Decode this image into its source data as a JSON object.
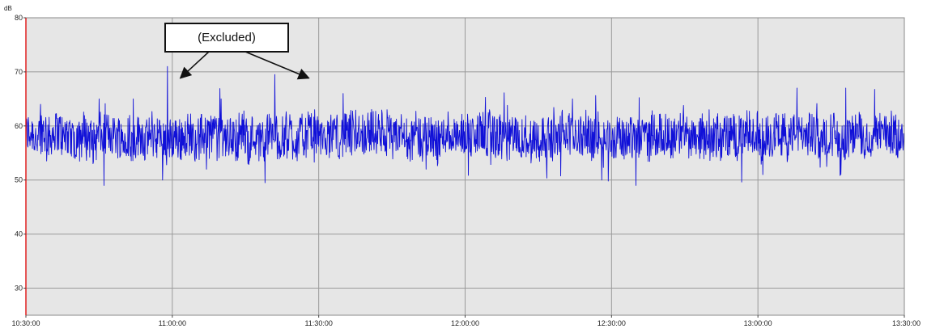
{
  "chart_data": {
    "type": "line",
    "title": "",
    "ylabel": "dB",
    "xlabel": "",
    "ylim": [
      25,
      80
    ],
    "yticks": [
      30,
      40,
      50,
      60,
      70,
      80
    ],
    "xlim": [
      "10:30:00",
      "13:30:00"
    ],
    "xticks": [
      "10:30:00",
      "11:00:00",
      "11:30:00",
      "12:00:00",
      "12:30:00",
      "13:00:00",
      "13:30:00"
    ],
    "grid": true,
    "legend": "none",
    "background_color": "#e6e6e6",
    "series_color": "#1010d8",
    "cursor_color": "#e02020",
    "series": [
      {
        "sample_interval_seconds": 5,
        "mean_level": 58,
        "typical_range": [
          54,
          62
        ],
        "peaks": [
          {
            "time": "10:33:00",
            "value": 64
          },
          {
            "time": "10:45:00",
            "value": 65
          },
          {
            "time": "10:46:00",
            "value": 49
          },
          {
            "time": "10:52:00",
            "value": 65
          },
          {
            "time": "10:58:00",
            "value": 50
          },
          {
            "time": "10:59:00",
            "value": 71
          },
          {
            "time": "11:07:00",
            "value": 52
          },
          {
            "time": "11:10:00",
            "value": 65
          },
          {
            "time": "11:19:00",
            "value": 49.5
          },
          {
            "time": "11:21:00",
            "value": 69.5
          },
          {
            "time": "11:35:00",
            "value": 66
          },
          {
            "time": "11:44:00",
            "value": 63
          },
          {
            "time": "11:52:00",
            "value": 52
          },
          {
            "time": "12:05:00",
            "value": 63
          },
          {
            "time": "12:22:00",
            "value": 65
          },
          {
            "time": "12:28:00",
            "value": 50
          },
          {
            "time": "12:35:00",
            "value": 49
          },
          {
            "time": "12:50:00",
            "value": 63
          },
          {
            "time": "13:01:00",
            "value": 51
          },
          {
            "time": "13:08:00",
            "value": 67
          },
          {
            "time": "13:17:00",
            "value": 51
          },
          {
            "time": "13:18:00",
            "value": 67
          }
        ]
      }
    ],
    "annotations": [
      {
        "text": "(Excluded)",
        "arrow_targets": [
          {
            "time": "10:59:00",
            "value": 69
          },
          {
            "time": "11:21:00",
            "value": 69
          }
        ]
      }
    ]
  }
}
